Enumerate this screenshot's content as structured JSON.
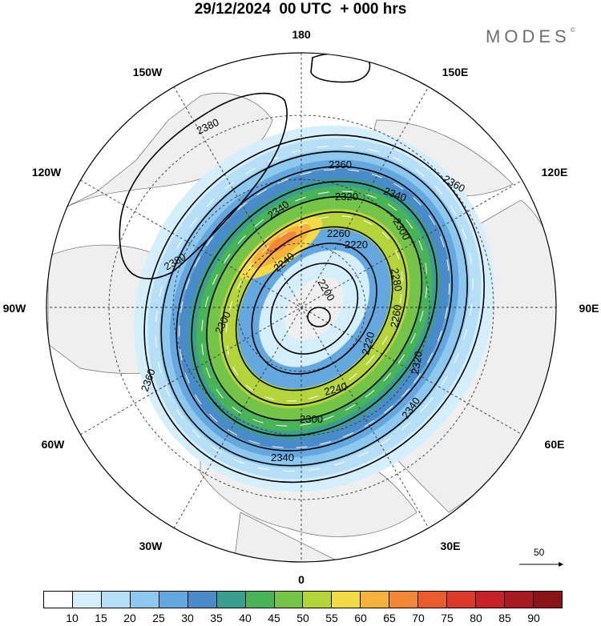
{
  "header": {
    "title": "29/12/2024  00 UTC  + 000 hrs",
    "brand": "MODES",
    "brand_mark": "©"
  },
  "map": {
    "projection": "north polar stereographic",
    "longitude_labels": [
      "180",
      "150E",
      "120E",
      "90E",
      "60E",
      "30E",
      "0",
      "30W",
      "60W",
      "90W",
      "120W",
      "150W"
    ],
    "contour_labels": [
      "2380",
      "2380",
      "2360",
      "2360",
      "2360",
      "2340",
      "2340",
      "2340",
      "2340",
      "2320",
      "2320",
      "2300",
      "2300",
      "2300",
      "2280",
      "2260",
      "2260",
      "2240",
      "2240",
      "2220",
      "2220",
      "2200"
    ],
    "vector_reference": {
      "label": "50",
      "icon": "arrow-right-icon"
    },
    "fill_colors": [
      "#ffffff",
      "#d5eefc",
      "#b6dff7",
      "#8ec8ef",
      "#65a8e0",
      "#4a8cc9",
      "#3c9e8e",
      "#49b357",
      "#74c44a",
      "#b5d43c",
      "#f5da48",
      "#f6b23d",
      "#f28737",
      "#ea5b2e",
      "#dc3a2b",
      "#c62228",
      "#a81a22",
      "#8b1419"
    ],
    "colorbar_ticks": [
      "10",
      "15",
      "20",
      "25",
      "30",
      "35",
      "40",
      "45",
      "50",
      "55",
      "60",
      "65",
      "70",
      "75",
      "80",
      "85",
      "90"
    ]
  }
}
